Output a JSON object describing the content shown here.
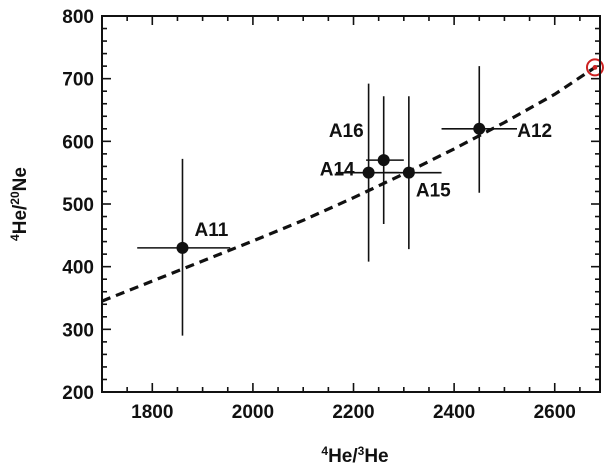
{
  "chart_data": {
    "type": "scatter",
    "xlabel": {
      "sup": "4",
      "base": "He/",
      "sup2": "3",
      "tail": "He"
    },
    "ylabel": {
      "sup": "4",
      "base": "He/",
      "sup2": "20",
      "tail": "Ne"
    },
    "xlim": [
      1700,
      2690
    ],
    "ylim": [
      200,
      800
    ],
    "x_ticks": [
      1800,
      2000,
      2200,
      2400,
      2600
    ],
    "y_ticks": [
      200,
      300,
      400,
      500,
      600,
      700,
      800
    ],
    "x_minor_step": 50,
    "y_minor_step": 20,
    "grid": false,
    "points": [
      {
        "label": "A11",
        "x": 1860,
        "y": 430,
        "xerr": [
          1770,
          1955
        ],
        "yerr": [
          290,
          572
        ]
      },
      {
        "label": "A14",
        "x": 2230,
        "y": 550,
        "xerr": [
          2165,
          2290
        ],
        "yerr": [
          408,
          692
        ]
      },
      {
        "label": "A16",
        "x": 2260,
        "y": 570,
        "xerr": [
          2225,
          2300
        ],
        "yerr": [
          468,
          672
        ]
      },
      {
        "label": "A15",
        "x": 2310,
        "y": 550,
        "xerr": [
          2260,
          2375
        ],
        "yerr": [
          428,
          672
        ]
      },
      {
        "label": "A12",
        "x": 2450,
        "y": 620,
        "xerr": [
          2375,
          2525
        ],
        "yerr": [
          518,
          720
        ]
      }
    ],
    "trend_line": {
      "style": "dashed",
      "color": "#111111",
      "x": [
        1700,
        1800,
        1900,
        2000,
        2100,
        2200,
        2300,
        2400,
        2500,
        2600,
        2680
      ],
      "y": [
        345,
        377,
        409,
        441,
        474,
        510,
        548,
        588,
        630,
        675,
        718
      ]
    },
    "endpoint_marker": {
      "x": 2680,
      "y": 718,
      "color": "#cc2222"
    }
  }
}
